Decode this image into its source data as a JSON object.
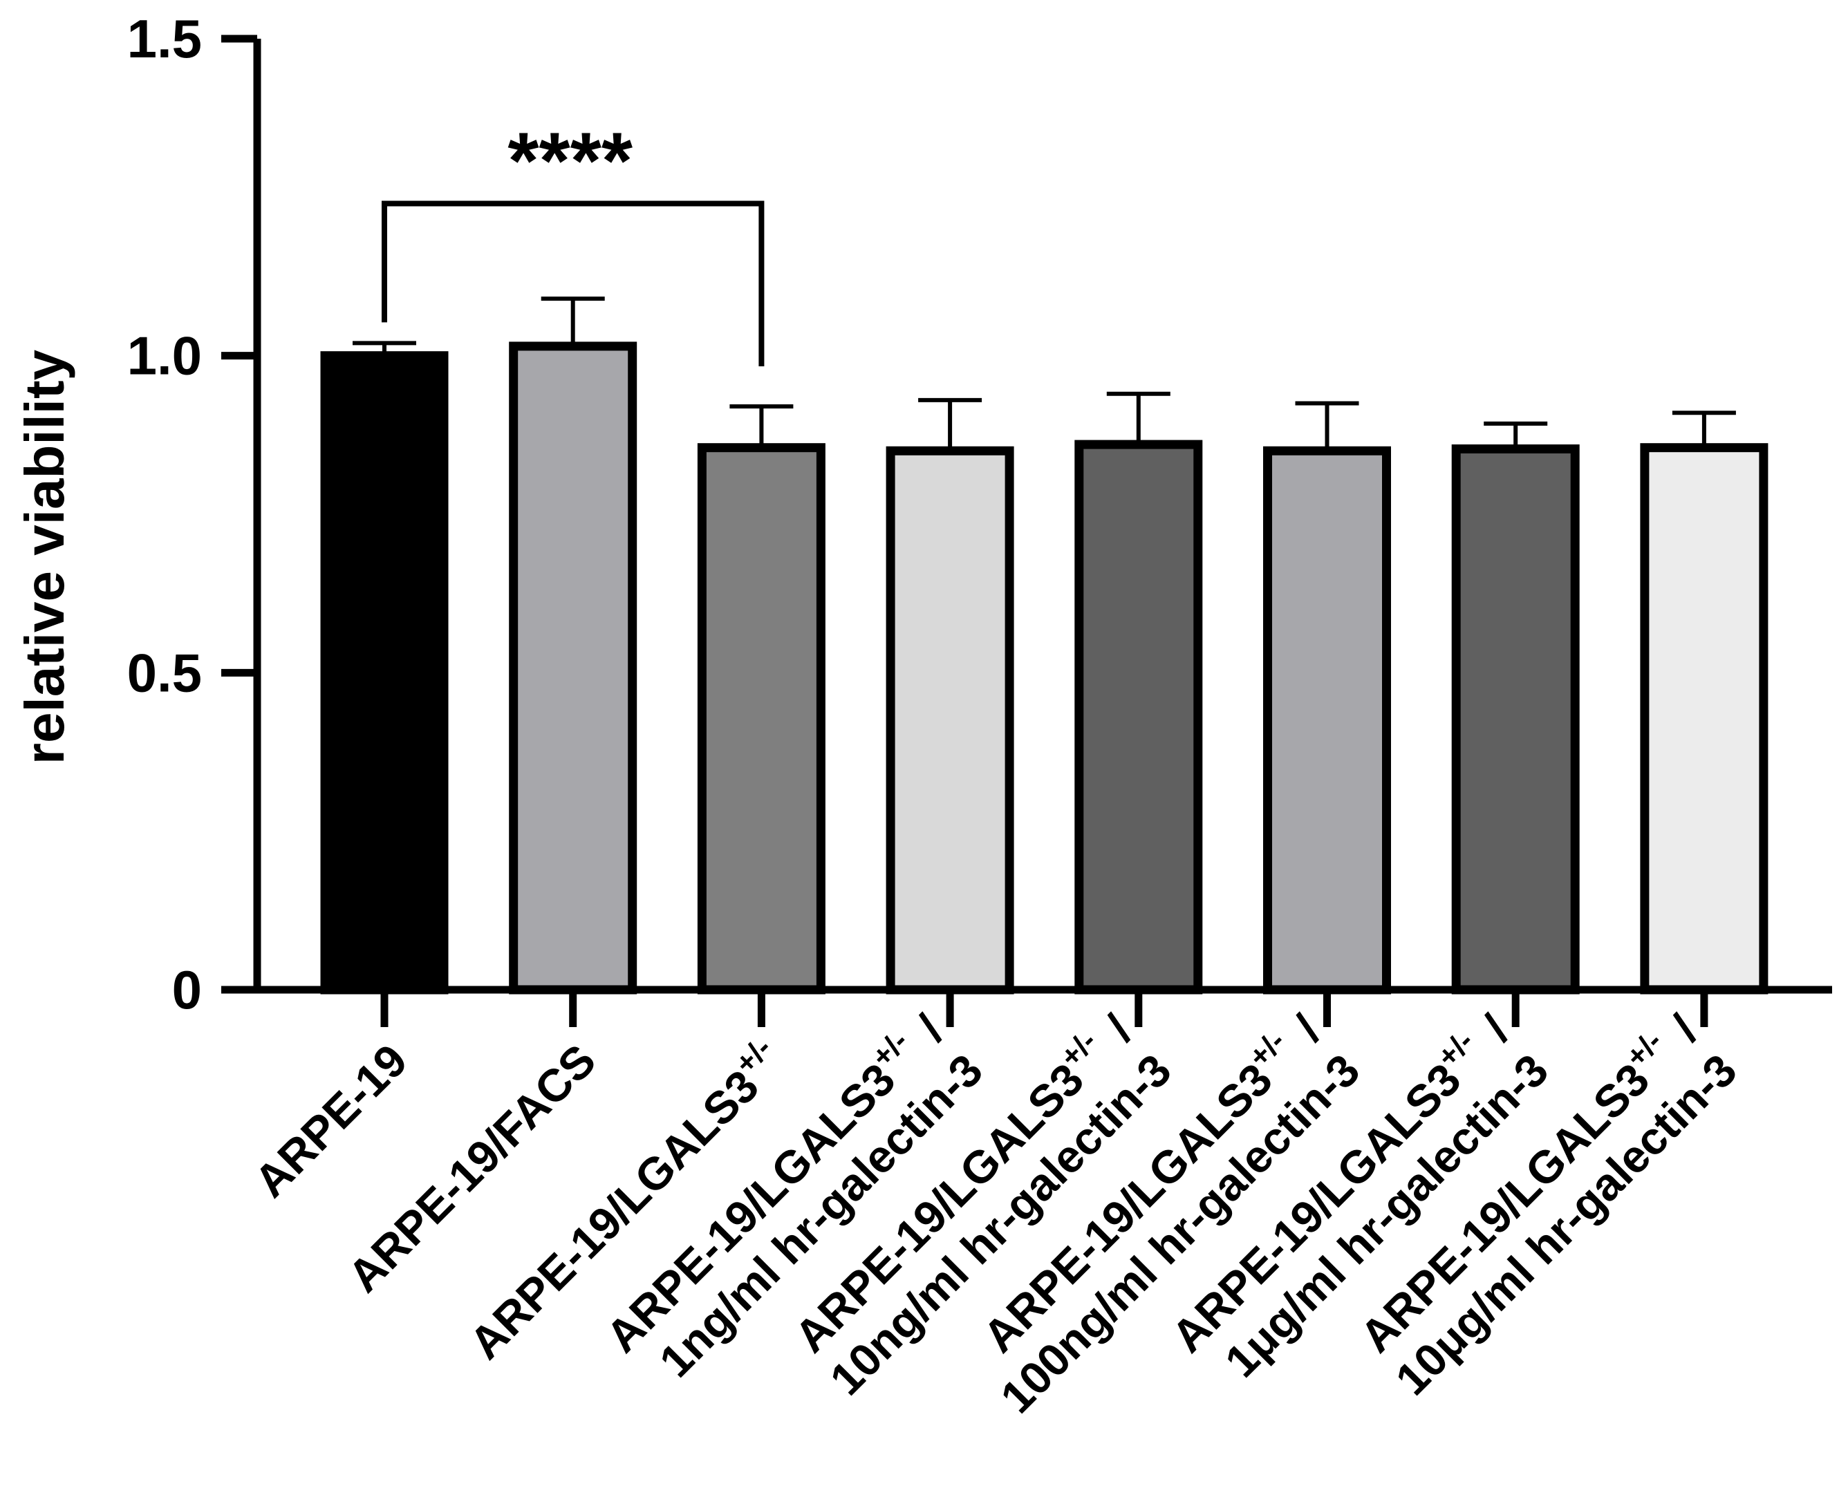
{
  "chart_data": {
    "type": "bar",
    "title": "",
    "xlabel": "",
    "ylabel": "relative viability",
    "ylim": [
      0,
      1.5
    ],
    "yticks": [
      0,
      0.5,
      1.0,
      1.5
    ],
    "ytick_labels": [
      "0",
      "0.5",
      "1.0",
      "1.5"
    ],
    "categories": [
      {
        "line1": "ARPE-19",
        "line2": "",
        "sup": "",
        "sep": ""
      },
      {
        "line1": "ARPE-19/FACS",
        "line2": "",
        "sup": "",
        "sep": ""
      },
      {
        "line1": "ARPE-19/LGALS3",
        "line2": "",
        "sup": "+/-",
        "sep": ""
      },
      {
        "line1": "ARPE-19/LGALS3",
        "line2": "1ng/ml hr-galectin-3",
        "sup": "+/-",
        "sep": "/"
      },
      {
        "line1": "ARPE-19/LGALS3",
        "line2": "10ng/ml hr-galectin-3",
        "sup": "+/-",
        "sep": "/"
      },
      {
        "line1": "ARPE-19/LGALS3",
        "line2": "100ng/ml hr-galectin-3",
        "sup": "+/-",
        "sep": "/"
      },
      {
        "line1": "ARPE-19/LGALS3",
        "line2": "1μg/ml hr-galectin-3",
        "sup": "+/-",
        "sep": "/"
      },
      {
        "line1": "ARPE-19/LGALS3",
        "line2": "10μg/ml hr-galectin-3",
        "sup": "+/-",
        "sep": "/"
      }
    ],
    "values": [
      1.0,
      1.015,
      0.855,
      0.85,
      0.86,
      0.85,
      0.853,
      0.855
    ],
    "errors": [
      0.02,
      0.075,
      0.065,
      0.08,
      0.08,
      0.075,
      0.04,
      0.055
    ],
    "colors": [
      "#000000",
      "#a7a7ab",
      "#7f7f7f",
      "#d9d9d9",
      "#606060",
      "#a7a7ab",
      "#606060",
      "#ececec"
    ],
    "significance": {
      "from": 0,
      "to": 2,
      "label": "****",
      "bracket_y": 1.24
    }
  }
}
